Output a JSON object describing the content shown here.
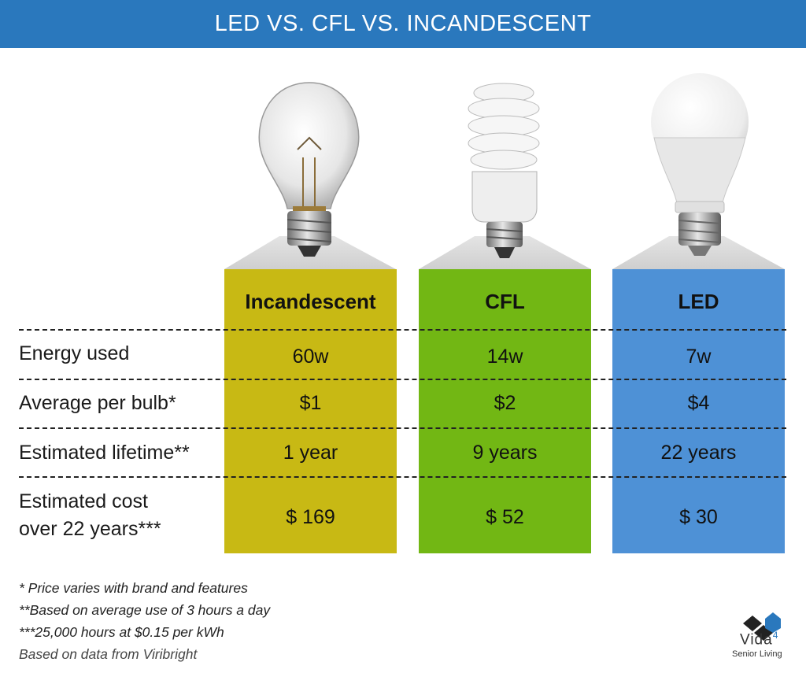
{
  "header": {
    "title": "LED VS. CFL VS. INCANDESCENT"
  },
  "columns": [
    {
      "name": "Incandescent",
      "color": "#c8b914",
      "bulb_icon": "incandescent-bulb",
      "values": [
        "60w",
        "$1",
        "1 year",
        "$ 169"
      ]
    },
    {
      "name": "CFL",
      "color": "#72b714",
      "bulb_icon": "cfl-spiral-bulb",
      "values": [
        "14w",
        "$2",
        "9 years",
        "$ 52"
      ]
    },
    {
      "name": "LED",
      "color": "#4e91d6",
      "bulb_icon": "led-bulb",
      "values": [
        "7w",
        "$4",
        "22 years",
        "$ 30"
      ]
    }
  ],
  "rows": {
    "energy": "Energy used",
    "price": "Average per bulb*",
    "lifetime": "Estimated lifetime**",
    "cost_line1": "Estimated cost",
    "cost_line2": "over 22 years***"
  },
  "notes": [
    "* Price varies with brand and features",
    "**Based on average use of 3 hours a day",
    "***25,000 hours at $0.15 per kWh",
    "Based on data from Viribright"
  ],
  "logo": {
    "name": "Vida",
    "superscript": "4",
    "subtitle": "Senior Living"
  },
  "colors": {
    "header": "#2a78bd",
    "incandescent": "#c8b914",
    "cfl": "#72b714",
    "led": "#4e91d6"
  }
}
